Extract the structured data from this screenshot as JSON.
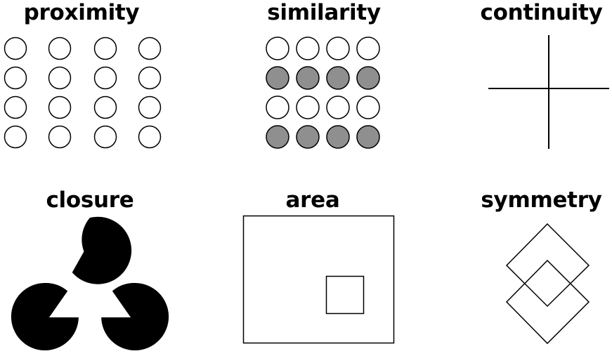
{
  "panels": [
    {
      "id": "proximity",
      "title": "proximity"
    },
    {
      "id": "similarity",
      "title": "similarity"
    },
    {
      "id": "continuity",
      "title": "continuity"
    },
    {
      "id": "closure",
      "title": "closure"
    },
    {
      "id": "area",
      "title": "area"
    },
    {
      "id": "symmetry",
      "title": "symmetry"
    }
  ],
  "colors": {
    "stroke": "#000000",
    "background": "#ffffff",
    "filled_circle": "#8f8f8f",
    "closure_fill": "#000000"
  },
  "proximity": {
    "rows": 4,
    "cols": 4
  },
  "similarity": {
    "rows": 4,
    "cols": 4,
    "filled_rows": [
      1,
      3
    ]
  }
}
